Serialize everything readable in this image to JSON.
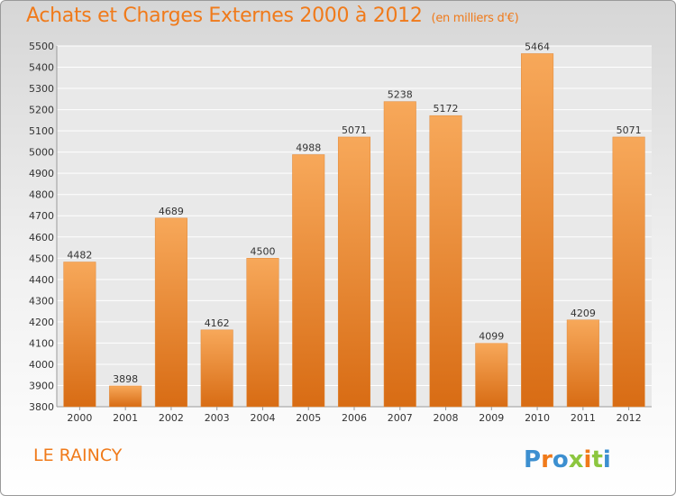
{
  "header": {
    "title": "Achats et Charges Externes 2000 à 2012",
    "unit_label": "(en milliers d'€)"
  },
  "footer": {
    "city": "LE RAINCY",
    "logo_text": "Proxiti"
  },
  "colors": {
    "bar_top": "#f7a85a",
    "bar_bottom": "#d86c14",
    "title": "#f07a1a",
    "grid": "#ffffff"
  },
  "chart_data": {
    "type": "bar",
    "title": "Achats et Charges Externes 2000 à 2012",
    "subtitle": "(en milliers d'€)",
    "xlabel": "",
    "ylabel": "",
    "categories": [
      "2000",
      "2001",
      "2002",
      "2003",
      "2004",
      "2005",
      "2006",
      "2007",
      "2008",
      "2009",
      "2010",
      "2011",
      "2012"
    ],
    "values": [
      4482,
      3898,
      4689,
      4162,
      4500,
      4988,
      5071,
      5238,
      5172,
      4099,
      5464,
      4209,
      5071
    ],
    "ylim": [
      3800,
      5500
    ],
    "yticks": [
      3800,
      3900,
      4000,
      4100,
      4200,
      4300,
      4400,
      4500,
      4600,
      4700,
      4800,
      4900,
      5000,
      5100,
      5200,
      5300,
      5400,
      5500
    ],
    "grid": true,
    "data_labels": true
  }
}
